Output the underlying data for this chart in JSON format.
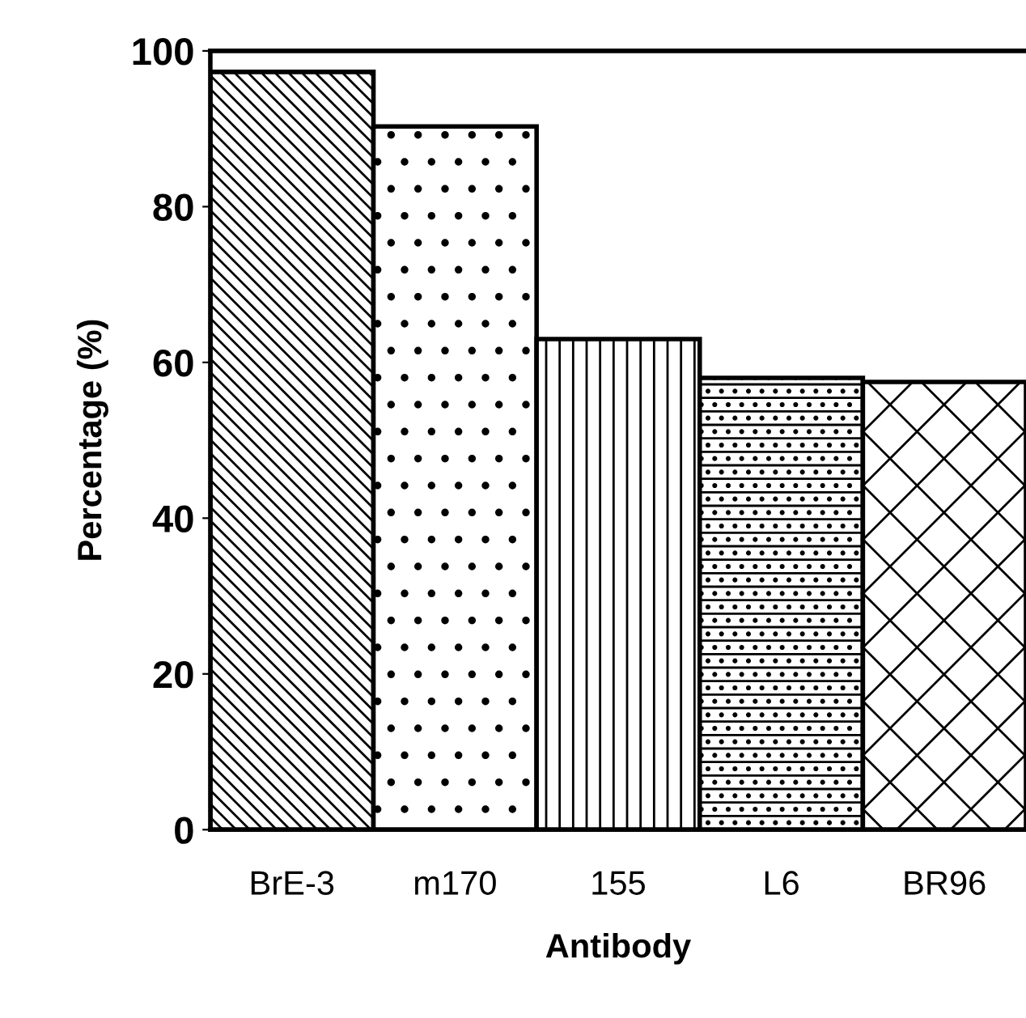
{
  "chart_data": {
    "type": "bar",
    "xlabel": "Antibody",
    "ylabel": "Percentage (%)",
    "categories": [
      "BrE-3",
      "m170",
      "155",
      "L6",
      "BR96"
    ],
    "values": [
      97.3,
      90.3,
      63,
      58,
      57.5
    ],
    "ylim": [
      0,
      100
    ],
    "yticks": [
      0,
      20,
      40,
      60,
      80,
      100
    ],
    "grid": false
  }
}
